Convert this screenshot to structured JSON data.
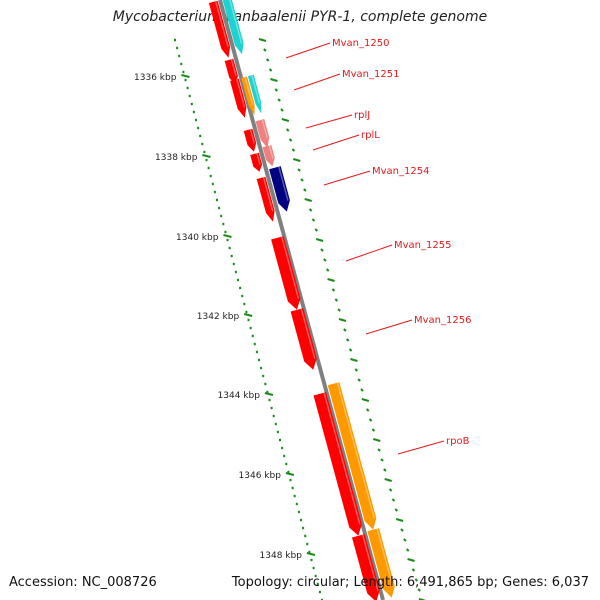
{
  "title": "Mycobacterium vanbaalenii PYR-1, complete genome",
  "footer": {
    "accession": "Accession: NC_008726",
    "summary": "Topology: circular; Length: 6,491,865 bp; Genes: 6,037"
  },
  "colors": {
    "gene_red": "#ff0000",
    "gene_cyan": "#1ed2d2",
    "gene_orange": "#ff9900",
    "gene_pink": "#f08080",
    "gene_navy": "#000080",
    "backbone": "#808080",
    "tick_green": "#1a8a1a",
    "label_red": "#e41a1c"
  },
  "ruler": {
    "labels": [
      "1336 kbp",
      "1338 kbp",
      "1340 kbp",
      "1342 kbp",
      "1344 kbp",
      "1346 kbp",
      "1348 kbp"
    ]
  },
  "gene_labels": [
    "Mvan_1250",
    "Mvan_1251",
    "rplJ",
    "rplL",
    "Mvan_1254",
    "Mvan_1255",
    "Mvan_1256",
    "rpoB"
  ]
}
